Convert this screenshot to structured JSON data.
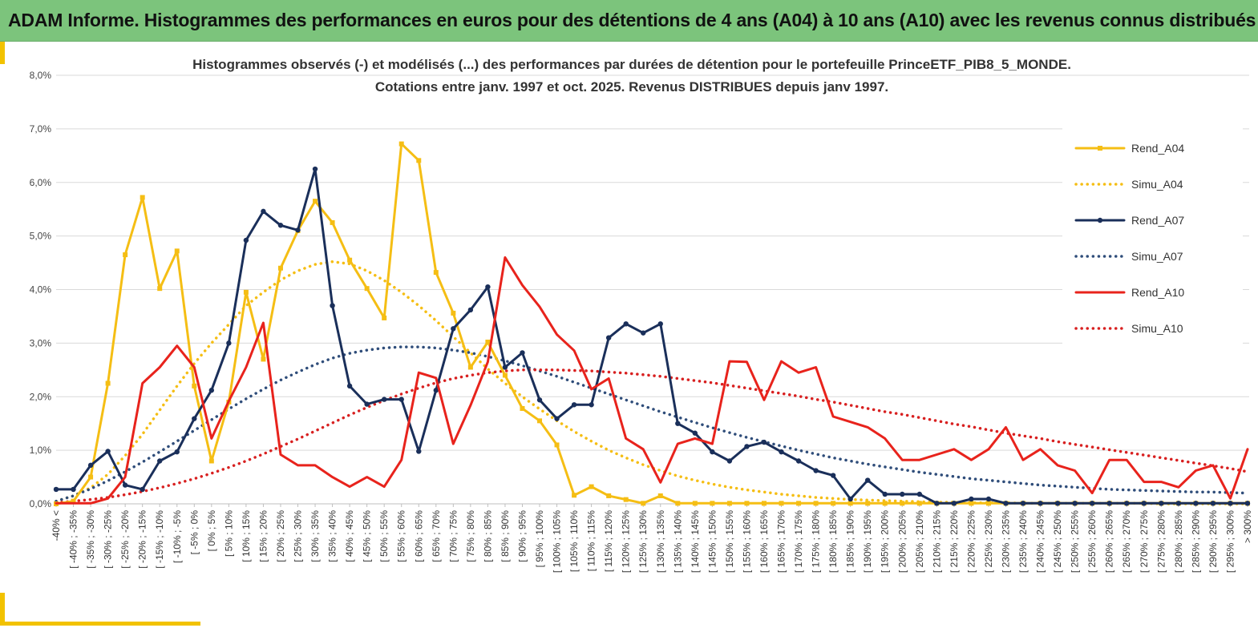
{
  "header": {
    "title": "ADAM Informe. Histogrammes des performances en euros pour des détentions de 4 ans (A04) à 10 ans (A10) avec les revenus connus distribués"
  },
  "chart_data": {
    "type": "line",
    "title": "Histogrammes observés (-) et modélisés (...) des performances par durées de détention pour le portefeuille PrinceETF_PIB8_5_MONDE.",
    "subtitle": "Cotations entre janv. 1997 et oct. 2025. Revenus DISTRIBUES depuis janv 1997.",
    "xlabel": "",
    "ylabel": "",
    "ylim": [
      0,
      8
    ],
    "yticks": [
      "0,0%",
      "1,0%",
      "2,0%",
      "3,0%",
      "4,0%",
      "5,0%",
      "6,0%",
      "7,0%",
      "8,0%"
    ],
    "grid": "horizontal",
    "legend_position": "right",
    "categories": [
      "-40% <",
      "[ -40% ; -35%",
      "[ -35% ; -30%",
      "[ -30% ; -25%",
      "[ -25% ; -20%",
      "[ -20% ; -15%",
      "[ -15% ; -10%",
      "[ -10% ; -5%",
      "[ -5% ; 0%",
      "[ 0% ; 5%",
      "[ 5% ; 10%",
      "[ 10% ; 15%",
      "[ 15% ; 20%",
      "[ 20% ; 25%",
      "[ 25% ; 30%",
      "[ 30% ; 35%",
      "[ 35% ; 40%",
      "[ 40% ; 45%",
      "[ 45% ; 50%",
      "[ 50% ; 55%",
      "[ 55% ; 60%",
      "[ 60% ; 65%",
      "[ 65% ; 70%",
      "[ 70% ; 75%",
      "[ 75% ; 80%",
      "[ 80% ; 85%",
      "[ 85% ; 90%",
      "[ 90% ; 95%",
      "[ 95% ; 100%",
      "[ 100% ; 105%",
      "[ 105% ; 110%",
      "[ 110% ; 115%",
      "[ 115% ; 120%",
      "[ 120% ; 125%",
      "[ 125% ; 130%",
      "[ 130% ; 135%",
      "[ 135% ; 140%",
      "[ 140% ; 145%",
      "[ 145% ; 150%",
      "[ 150% ; 155%",
      "[ 155% ; 160%",
      "[ 160% ; 165%",
      "[ 165% ; 170%",
      "[ 170% ; 175%",
      "[ 175% ; 180%",
      "[ 180% ; 185%",
      "[ 185% ; 190%",
      "[ 190% ; 195%",
      "[ 195% ; 200%",
      "[ 200% ; 205%",
      "[ 205% ; 210%",
      "[ 210% ; 215%",
      "[ 215% ; 220%",
      "[ 220% ; 225%",
      "[ 225% ; 230%",
      "[ 230% ; 235%",
      "[ 235% ; 240%",
      "[ 240% ; 245%",
      "[ 245% ; 250%",
      "[ 250% ; 255%",
      "[ 255% ; 260%",
      "[ 260% ; 265%",
      "[ 265% ; 270%",
      "[ 270% ; 275%",
      "[ 275% ; 280%",
      "[ 280% ; 285%",
      "[ 285% ; 290%",
      "[ 290% ; 295%",
      "[ 295% ; 300%",
      "> 300%"
    ],
    "series": [
      {
        "name": "Rend_A04",
        "style": "solid",
        "marker": "square",
        "color": "#f5be14",
        "values": [
          0.0,
          0.05,
          0.5,
          2.25,
          4.65,
          5.72,
          4.02,
          4.72,
          2.2,
          0.8,
          1.9,
          3.95,
          2.7,
          4.4,
          5.1,
          5.65,
          5.25,
          4.55,
          4.02,
          3.47,
          6.72,
          6.41,
          4.32,
          3.56,
          2.55,
          3.02,
          2.4,
          1.78,
          1.55,
          1.1,
          0.16,
          0.32,
          0.15,
          0.08,
          0.01,
          0.15,
          0.01,
          0.01,
          0.01,
          0.01,
          0.01,
          0.01,
          0.01,
          0.01,
          0.01,
          0.01,
          0.01,
          0.01,
          0.01,
          0.01,
          0.01,
          0.01,
          0.01,
          0.01,
          0.01,
          0.01,
          0.01,
          0.01,
          0.01,
          0.01,
          0.01,
          0.01,
          0.01,
          0.01,
          0.01,
          0.01,
          0.01,
          0.01,
          0.01,
          0.01
        ]
      },
      {
        "name": "Simu_A04",
        "style": "dotted",
        "marker": "none",
        "color": "#f5be14",
        "values": [
          0.05,
          0.15,
          0.3,
          0.55,
          0.9,
          1.3,
          1.75,
          2.2,
          2.62,
          3.0,
          3.35,
          3.7,
          3.95,
          4.18,
          4.35,
          4.47,
          4.52,
          4.48,
          4.35,
          4.17,
          3.95,
          3.7,
          3.42,
          3.12,
          2.82,
          2.52,
          2.25,
          2.0,
          1.77,
          1.55,
          1.35,
          1.17,
          1.0,
          0.86,
          0.73,
          0.62,
          0.52,
          0.44,
          0.37,
          0.31,
          0.26,
          0.22,
          0.18,
          0.15,
          0.12,
          0.1,
          0.08,
          0.07,
          0.06,
          0.05,
          0.04,
          0.03,
          0.03,
          0.02,
          0.02,
          0.02,
          0.01,
          0.01,
          0.01,
          0.01,
          0.01,
          0.01,
          0.01,
          0.01,
          0.0,
          0.0,
          0.0,
          0.0,
          0.0,
          0.0
        ]
      },
      {
        "name": "Rend_A07",
        "style": "solid",
        "marker": "circle",
        "color": "#1a2f5a",
        "values": [
          0.27,
          0.27,
          0.72,
          0.98,
          0.35,
          0.27,
          0.8,
          0.97,
          1.59,
          2.12,
          3.0,
          4.92,
          5.46,
          5.2,
          5.11,
          6.25,
          3.7,
          2.2,
          1.86,
          1.95,
          1.95,
          0.98,
          2.12,
          3.27,
          3.62,
          4.05,
          2.55,
          2.82,
          1.94,
          1.59,
          1.85,
          1.85,
          3.1,
          3.36,
          3.19,
          3.36,
          1.5,
          1.32,
          0.97,
          0.8,
          1.07,
          1.15,
          0.97,
          0.8,
          0.62,
          0.53,
          0.09,
          0.44,
          0.18,
          0.18,
          0.18,
          0.01,
          0.01,
          0.09,
          0.09,
          0.01,
          0.01,
          0.01,
          0.01,
          0.01,
          0.01,
          0.01,
          0.01,
          0.01,
          0.01,
          0.01,
          0.01,
          0.01,
          0.01,
          0.01
        ]
      },
      {
        "name": "Simu_A07",
        "style": "dotted",
        "marker": "none",
        "color": "#2f4d7a",
        "values": [
          0.05,
          0.15,
          0.28,
          0.43,
          0.6,
          0.78,
          0.97,
          1.17,
          1.37,
          1.57,
          1.77,
          1.96,
          2.14,
          2.31,
          2.46,
          2.6,
          2.72,
          2.81,
          2.87,
          2.91,
          2.93,
          2.93,
          2.91,
          2.87,
          2.82,
          2.75,
          2.67,
          2.58,
          2.48,
          2.38,
          2.27,
          2.16,
          2.05,
          1.94,
          1.83,
          1.72,
          1.62,
          1.52,
          1.42,
          1.33,
          1.24,
          1.16,
          1.08,
          1.0,
          0.93,
          0.86,
          0.8,
          0.74,
          0.69,
          0.64,
          0.59,
          0.55,
          0.51,
          0.47,
          0.44,
          0.41,
          0.38,
          0.35,
          0.33,
          0.31,
          0.29,
          0.27,
          0.26,
          0.25,
          0.24,
          0.23,
          0.22,
          0.22,
          0.21,
          0.2
        ]
      },
      {
        "name": "Rend_A10",
        "style": "solid",
        "marker": "none",
        "color": "#e8231c",
        "values": [
          0.01,
          0.01,
          0.01,
          0.1,
          0.5,
          2.25,
          2.55,
          2.95,
          2.55,
          1.22,
          1.92,
          2.55,
          3.38,
          0.92,
          0.72,
          0.72,
          0.5,
          0.32,
          0.5,
          0.32,
          0.82,
          2.45,
          2.35,
          1.12,
          1.84,
          2.65,
          4.6,
          4.08,
          3.68,
          3.16,
          2.86,
          2.14,
          2.34,
          1.22,
          1.02,
          0.4,
          1.12,
          1.22,
          1.12,
          2.66,
          2.65,
          1.94,
          2.66,
          2.45,
          2.55,
          1.63,
          1.53,
          1.43,
          1.22,
          0.82,
          0.82,
          0.92,
          1.02,
          0.82,
          1.02,
          1.43,
          0.82,
          1.02,
          0.72,
          0.62,
          0.2,
          0.82,
          0.82,
          0.41,
          0.41,
          0.31,
          0.62,
          0.72,
          0.1,
          1.02
        ]
      },
      {
        "name": "Simu_A10",
        "style": "dotted",
        "marker": "none",
        "color": "#d82020",
        "values": [
          0.02,
          0.05,
          0.08,
          0.12,
          0.17,
          0.23,
          0.3,
          0.38,
          0.47,
          0.57,
          0.68,
          0.8,
          0.93,
          1.07,
          1.21,
          1.36,
          1.51,
          1.66,
          1.8,
          1.93,
          2.05,
          2.16,
          2.26,
          2.34,
          2.4,
          2.45,
          2.48,
          2.5,
          2.5,
          2.5,
          2.49,
          2.48,
          2.46,
          2.44,
          2.41,
          2.38,
          2.34,
          2.3,
          2.26,
          2.21,
          2.16,
          2.11,
          2.06,
          2.01,
          1.95,
          1.9,
          1.84,
          1.78,
          1.72,
          1.67,
          1.61,
          1.55,
          1.49,
          1.44,
          1.38,
          1.32,
          1.27,
          1.22,
          1.16,
          1.11,
          1.06,
          1.01,
          0.96,
          0.91,
          0.86,
          0.81,
          0.76,
          0.71,
          0.66,
          0.6
        ]
      }
    ]
  }
}
